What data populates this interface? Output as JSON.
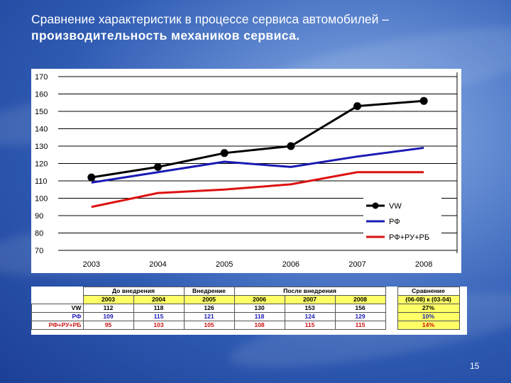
{
  "slide": {
    "title_line1": "Сравнение характеристик в процессе сервиса автомобилей –",
    "title_line2": "производительность механиков сервиса.",
    "page_number": "15"
  },
  "chart_data": {
    "type": "line",
    "categories": [
      "2003",
      "2004",
      "2005",
      "2006",
      "2007",
      "2008"
    ],
    "ylim": [
      70,
      170
    ],
    "yticks": [
      70,
      80,
      90,
      100,
      110,
      120,
      130,
      140,
      150,
      160,
      170
    ],
    "grid": true,
    "legend_position": "bottom-right",
    "series": [
      {
        "name": "VW",
        "values": [
          112,
          118,
          126,
          130,
          153,
          156
        ],
        "color": "#000000",
        "markers": true
      },
      {
        "name": "РФ",
        "values": [
          109,
          115,
          121,
          118,
          124,
          129
        ],
        "color": "#1a1ab5",
        "markers": false
      },
      {
        "name": "РФ+РУ+РБ",
        "values": [
          95,
          103,
          105,
          108,
          115,
          115
        ],
        "color": "#dd1111",
        "markers": false
      }
    ]
  },
  "table": {
    "group_headers": [
      "До внедрения",
      "Внедрение",
      "После внедрения",
      "Сравнение"
    ],
    "years": [
      "2003",
      "2004",
      "2005",
      "2006",
      "2007",
      "2008"
    ],
    "comparison_label": "(06-08) к (03-04)",
    "rows": [
      {
        "label": "VW",
        "values": [
          "112",
          "118",
          "126",
          "130",
          "153",
          "156"
        ],
        "comparison": "27%"
      },
      {
        "label": "РФ",
        "values": [
          "109",
          "115",
          "121",
          "118",
          "124",
          "129"
        ],
        "comparison": "10%"
      },
      {
        "label": "РФ+РУ+РБ",
        "values": [
          "95",
          "103",
          "105",
          "108",
          "115",
          "115"
        ],
        "comparison": "14%"
      }
    ]
  }
}
